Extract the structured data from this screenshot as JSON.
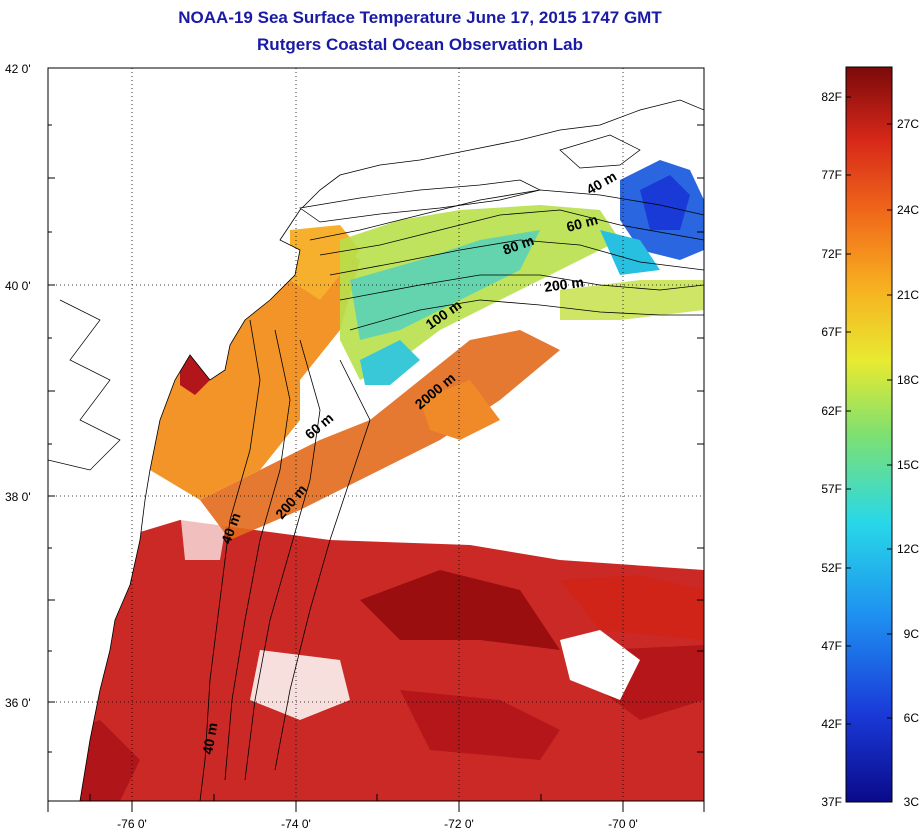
{
  "title": {
    "line1": "NOAA-19 Sea Surface Temperature June 17, 2015 1747 GMT",
    "line2": "Rutgers Coastal Ocean Observation Lab"
  },
  "map": {
    "lat_labels": [
      "42 0'",
      "40 0'",
      "38 0'",
      "36 0'"
    ],
    "lon_labels": [
      "-76 0'",
      "-74 0'",
      "-72 0'",
      "-70 0'"
    ],
    "contours": [
      {
        "label": "40 m"
      },
      {
        "label": "60 m"
      },
      {
        "label": "80 m"
      },
      {
        "label": "200 m"
      },
      {
        "label": "100 m"
      },
      {
        "label": "2000 m"
      },
      {
        "label": "60 m"
      },
      {
        "label": "200 m"
      },
      {
        "label": "40 m"
      },
      {
        "label": "40 m"
      }
    ]
  },
  "colorbar": {
    "fahrenheit": [
      "82F",
      "77F",
      "72F",
      "67F",
      "62F",
      "57F",
      "52F",
      "47F",
      "42F",
      "37F"
    ],
    "celsius": [
      "27C",
      "24C",
      "21C",
      "18C",
      "15C",
      "12C",
      "9C",
      "6C",
      "3C"
    ]
  },
  "colors": {
    "title": "#1a1aa6",
    "warm": "#b0151a",
    "cold": "#1e3fd8"
  }
}
